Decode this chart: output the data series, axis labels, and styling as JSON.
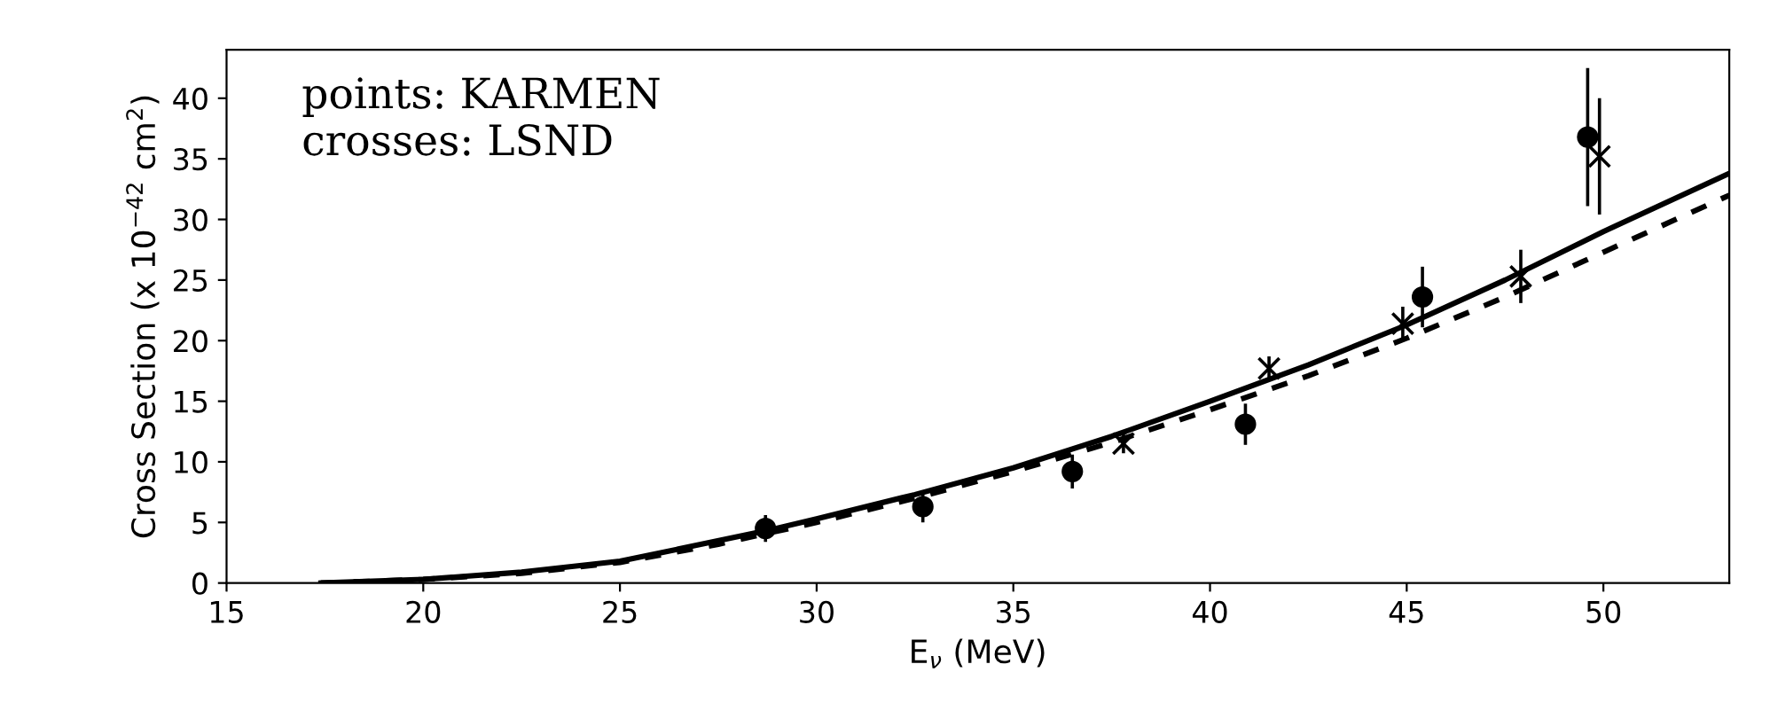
{
  "chart_data": {
    "type": "scatter",
    "xlabel": "E$_{ν}$ (MeV)",
    "ylabel": "Cross Section (x 10$^{−42}$ cm$^{2}$)",
    "xlim": [
      15,
      53.2
    ],
    "ylim": [
      0,
      44
    ],
    "xticks": [
      15,
      20,
      25,
      30,
      35,
      40,
      45,
      50
    ],
    "yticks": [
      0,
      5,
      10,
      15,
      20,
      25,
      30,
      35,
      40
    ],
    "grid": false,
    "legend": false,
    "annotations": [
      "points: KARMEN\ncrosses: LSND"
    ],
    "series": [
      {
        "type": "line",
        "line_style": "solid",
        "marker": "none",
        "color": "#000000",
        "x": [
          17.4,
          20,
          22.5,
          25,
          28.7,
          30,
          32.5,
          35,
          37.5,
          40,
          42.5,
          45,
          47.5,
          50,
          53.2
        ],
        "values": [
          0,
          0.3,
          0.9,
          1.8,
          4.3,
          5.3,
          7.3,
          9.5,
          12.1,
          15,
          18,
          21.3,
          25,
          29,
          33.8
        ]
      },
      {
        "type": "line",
        "line_style": "dashed",
        "marker": "none",
        "color": "#000000",
        "x": [
          17.4,
          20,
          22.5,
          25,
          27.5,
          30,
          32.5,
          35,
          37.5,
          40,
          42.5,
          45,
          47.5,
          50,
          53.2
        ],
        "values": [
          0,
          0.3,
          0.8,
          1.7,
          3.2,
          5.0,
          7.0,
          9.2,
          11.6,
          14.3,
          17.1,
          20.2,
          23.6,
          27.3,
          32
        ]
      },
      {
        "marker": "circle",
        "color": "#000000",
        "x": [
          28.7,
          32.7,
          36.5,
          40.9,
          45.4,
          49.6
        ],
        "values": [
          4.5,
          6.3,
          9.2,
          13.1,
          23.6,
          36.8
        ],
        "errors": [
          1.1,
          1.3,
          1.4,
          1.7,
          2.5,
          5.7
        ]
      },
      {
        "marker": "cross",
        "color": "#000000",
        "x": [
          37.8,
          41.5,
          44.9,
          47.9,
          49.9
        ],
        "values": [
          11.5,
          17.7,
          21.4,
          25.3,
          35.2
        ],
        "errors": [
          0.8,
          1.0,
          1.4,
          2.2,
          4.8
        ]
      }
    ]
  }
}
